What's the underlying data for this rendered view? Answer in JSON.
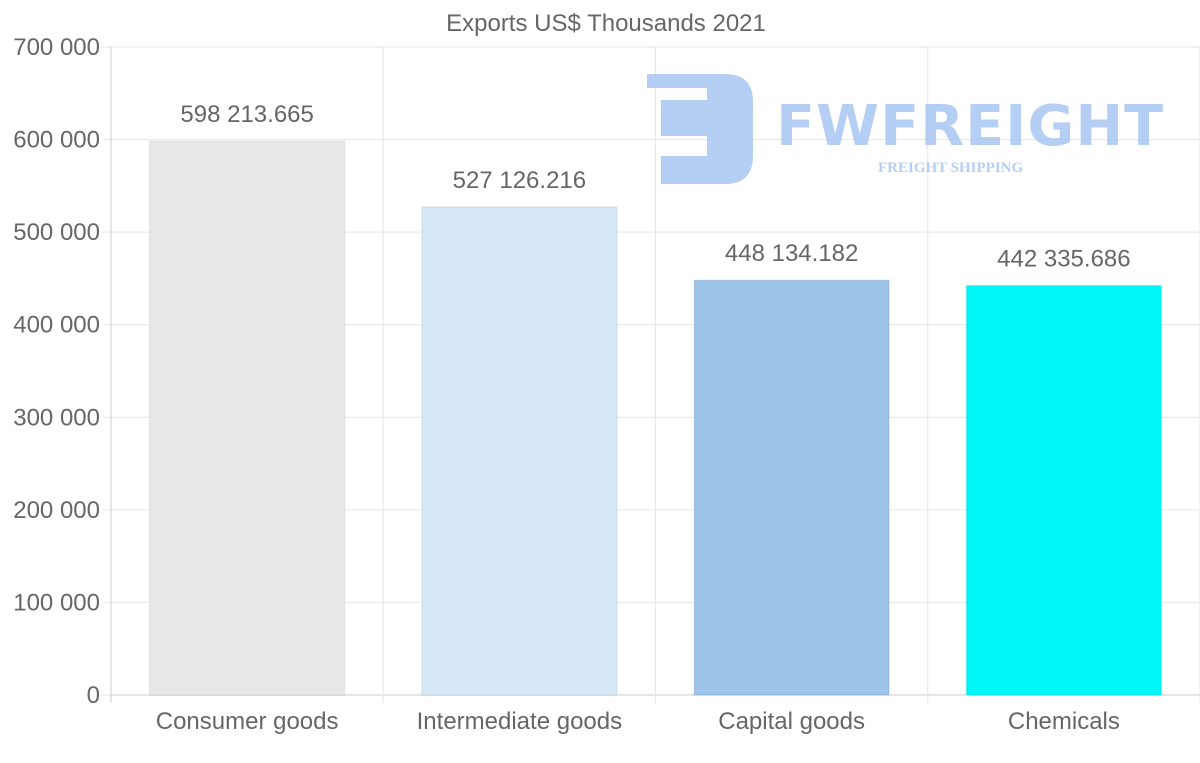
{
  "chart_data": {
    "type": "bar",
    "title": "Exports US$ Thousands 2021",
    "categories": [
      "Consumer goods",
      "Intermediate goods",
      "Capital goods",
      "Chemicals"
    ],
    "values": [
      598213.665,
      527126.216,
      448134.182,
      442335.686
    ],
    "value_labels": [
      "598 213.665",
      "527 126.216",
      "448 134.182",
      "442 335.686"
    ],
    "colors": [
      "#e8e8e8",
      "#d6e8f8",
      "#9cc4e8",
      "#00f7f7"
    ],
    "ylim": [
      0,
      700000
    ],
    "yticks": [
      0,
      100000,
      200000,
      300000,
      400000,
      500000,
      600000,
      700000
    ],
    "ytick_labels": [
      "0",
      "100 000",
      "200 000",
      "300 000",
      "400 000",
      "500 000",
      "600 000",
      "700 000"
    ],
    "xlabel": "",
    "ylabel": "",
    "grid": true,
    "legend": "none"
  },
  "watermark": {
    "name": "FWFREIGHT",
    "tagline": "FREIGHT SHIPPING"
  }
}
